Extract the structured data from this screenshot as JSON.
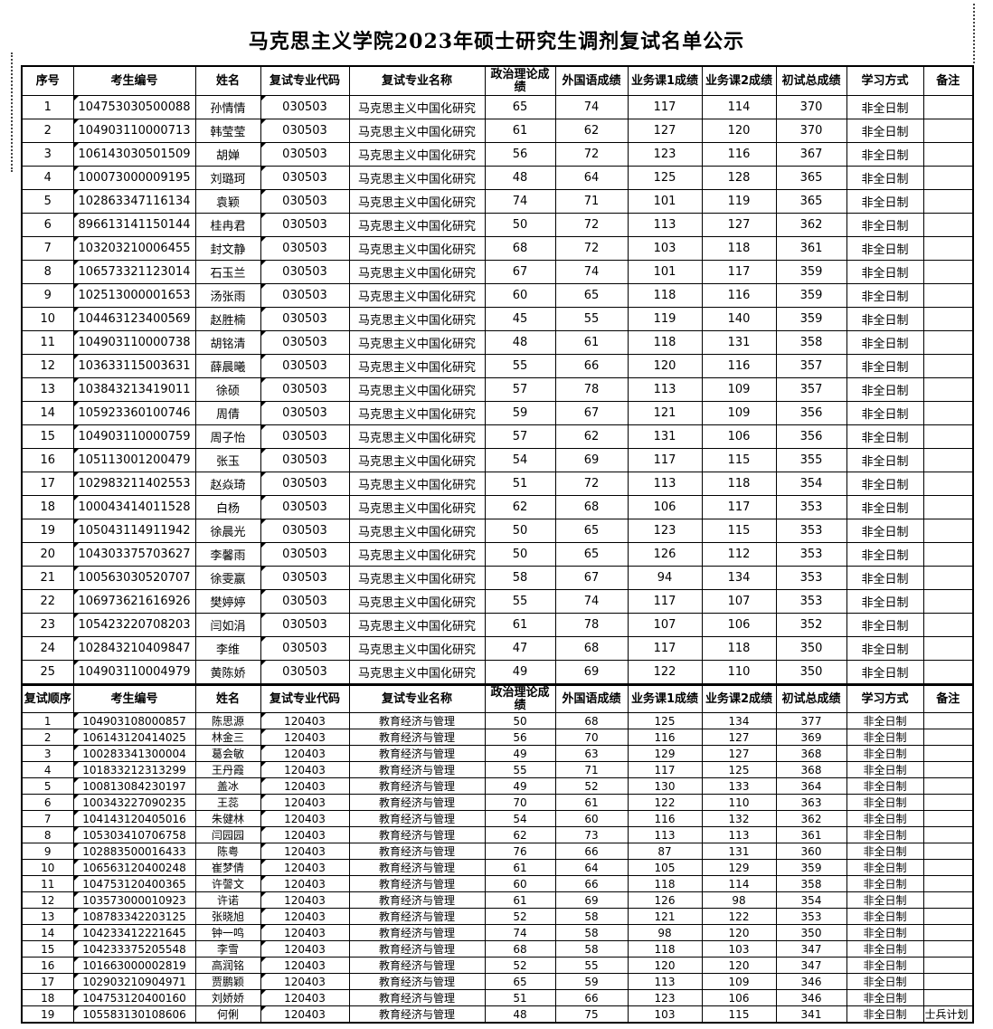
{
  "title": "马克思主义学院2023年硕士研究生调剂复试名单公示",
  "table1": {
    "headers": [
      "序号",
      "考生编号",
      "姓名",
      "复试专业代码",
      "复试专业名称",
      "政治理论成绩",
      "外国语成绩",
      "业务课1成绩",
      "业务课2成绩",
      "初试总成绩",
      "学习方式",
      "备注"
    ],
    "rows": [
      [
        "1",
        "104753030500088",
        "孙情情",
        "030503",
        "马克思主义中国化研究",
        "65",
        "74",
        "117",
        "114",
        "370",
        "非全日制",
        ""
      ],
      [
        "2",
        "104903110000713",
        "韩莹莹",
        "030503",
        "马克思主义中国化研究",
        "61",
        "62",
        "127",
        "120",
        "370",
        "非全日制",
        ""
      ],
      [
        "3",
        "106143030501509",
        "胡婵",
        "030503",
        "马克思主义中国化研究",
        "56",
        "72",
        "123",
        "116",
        "367",
        "非全日制",
        ""
      ],
      [
        "4",
        "100073000009195",
        "刘璐珂",
        "030503",
        "马克思主义中国化研究",
        "48",
        "64",
        "125",
        "128",
        "365",
        "非全日制",
        ""
      ],
      [
        "5",
        "102863347116134",
        "袁颖",
        "030503",
        "马克思主义中国化研究",
        "74",
        "71",
        "101",
        "119",
        "365",
        "非全日制",
        ""
      ],
      [
        "6",
        "896613141150144",
        "桂冉君",
        "030503",
        "马克思主义中国化研究",
        "50",
        "72",
        "113",
        "127",
        "362",
        "非全日制",
        ""
      ],
      [
        "7",
        "103203210006455",
        "封文静",
        "030503",
        "马克思主义中国化研究",
        "68",
        "72",
        "103",
        "118",
        "361",
        "非全日制",
        ""
      ],
      [
        "8",
        "106573321123014",
        "石玉兰",
        "030503",
        "马克思主义中国化研究",
        "67",
        "74",
        "101",
        "117",
        "359",
        "非全日制",
        ""
      ],
      [
        "9",
        "102513000001653",
        "汤张雨",
        "030503",
        "马克思主义中国化研究",
        "60",
        "65",
        "118",
        "116",
        "359",
        "非全日制",
        ""
      ],
      [
        "10",
        "104463123400569",
        "赵胜楠",
        "030503",
        "马克思主义中国化研究",
        "45",
        "55",
        "119",
        "140",
        "359",
        "非全日制",
        ""
      ],
      [
        "11",
        "104903110000738",
        "胡铭清",
        "030503",
        "马克思主义中国化研究",
        "48",
        "61",
        "118",
        "131",
        "358",
        "非全日制",
        ""
      ],
      [
        "12",
        "103633115003631",
        "薛晨曦",
        "030503",
        "马克思主义中国化研究",
        "55",
        "66",
        "120",
        "116",
        "357",
        "非全日制",
        ""
      ],
      [
        "13",
        "103843213419011",
        "徐硕",
        "030503",
        "马克思主义中国化研究",
        "57",
        "78",
        "113",
        "109",
        "357",
        "非全日制",
        ""
      ],
      [
        "14",
        "105923360100746",
        "周倩",
        "030503",
        "马克思主义中国化研究",
        "59",
        "67",
        "121",
        "109",
        "356",
        "非全日制",
        ""
      ],
      [
        "15",
        "104903110000759",
        "周子怡",
        "030503",
        "马克思主义中国化研究",
        "57",
        "62",
        "131",
        "106",
        "356",
        "非全日制",
        ""
      ],
      [
        "16",
        "105113001200479",
        "张玉",
        "030503",
        "马克思主义中国化研究",
        "54",
        "69",
        "117",
        "115",
        "355",
        "非全日制",
        ""
      ],
      [
        "17",
        "102983211402553",
        "赵焱琦",
        "030503",
        "马克思主义中国化研究",
        "51",
        "72",
        "113",
        "118",
        "354",
        "非全日制",
        ""
      ],
      [
        "18",
        "100043414011528",
        "白杨",
        "030503",
        "马克思主义中国化研究",
        "62",
        "68",
        "106",
        "117",
        "353",
        "非全日制",
        ""
      ],
      [
        "19",
        "105043114911942",
        "徐晨光",
        "030503",
        "马克思主义中国化研究",
        "50",
        "65",
        "123",
        "115",
        "353",
        "非全日制",
        ""
      ],
      [
        "20",
        "104303375703627",
        "李馨雨",
        "030503",
        "马克思主义中国化研究",
        "50",
        "65",
        "126",
        "112",
        "353",
        "非全日制",
        ""
      ],
      [
        "21",
        "100563030520707",
        "徐雯嬴",
        "030503",
        "马克思主义中国化研究",
        "58",
        "67",
        "94",
        "134",
        "353",
        "非全日制",
        ""
      ],
      [
        "22",
        "106973621616926",
        "樊婷婷",
        "030503",
        "马克思主义中国化研究",
        "55",
        "74",
        "117",
        "107",
        "353",
        "非全日制",
        ""
      ],
      [
        "23",
        "105423220708203",
        "闫如涓",
        "030503",
        "马克思主义中国化研究",
        "61",
        "78",
        "107",
        "106",
        "352",
        "非全日制",
        ""
      ],
      [
        "24",
        "102843210409847",
        "李维",
        "030503",
        "马克思主义中国化研究",
        "47",
        "68",
        "117",
        "118",
        "350",
        "非全日制",
        ""
      ],
      [
        "25",
        "104903110004979",
        "黄陈娇",
        "030503",
        "马克思主义中国化研究",
        "49",
        "69",
        "122",
        "110",
        "350",
        "非全日制",
        ""
      ]
    ]
  },
  "table2": {
    "headers": [
      "复试顺序",
      "考生编号",
      "姓名",
      "复试专业代码",
      "复试专业名称",
      "政治理论成绩",
      "外国语成绩",
      "业务课1成绩",
      "业务课2成绩",
      "初试总成绩",
      "学习方式",
      "备注"
    ],
    "rows": [
      [
        "1",
        "104903108000857",
        "陈思源",
        "120403",
        "教育经济与管理",
        "50",
        "68",
        "125",
        "134",
        "377",
        "非全日制",
        ""
      ],
      [
        "2",
        "106143120414025",
        "林金三",
        "120403",
        "教育经济与管理",
        "56",
        "70",
        "116",
        "127",
        "369",
        "非全日制",
        ""
      ],
      [
        "3",
        "100283341300004",
        "葛会敏",
        "120403",
        "教育经济与管理",
        "49",
        "63",
        "129",
        "127",
        "368",
        "非全日制",
        ""
      ],
      [
        "4",
        "101833212313299",
        "王丹霞",
        "120403",
        "教育经济与管理",
        "55",
        "71",
        "117",
        "125",
        "368",
        "非全日制",
        ""
      ],
      [
        "5",
        "100813084230197",
        "盖冰",
        "120403",
        "教育经济与管理",
        "49",
        "52",
        "130",
        "133",
        "364",
        "非全日制",
        ""
      ],
      [
        "6",
        "100343227090235",
        "王蕊",
        "120403",
        "教育经济与管理",
        "70",
        "61",
        "122",
        "110",
        "363",
        "非全日制",
        ""
      ],
      [
        "7",
        "104143120405016",
        "朱健林",
        "120403",
        "教育经济与管理",
        "54",
        "60",
        "116",
        "132",
        "362",
        "非全日制",
        ""
      ],
      [
        "8",
        "105303410706758",
        "闫园园",
        "120403",
        "教育经济与管理",
        "62",
        "73",
        "113",
        "113",
        "361",
        "非全日制",
        ""
      ],
      [
        "9",
        "102883500016433",
        "陈粤",
        "120403",
        "教育经济与管理",
        "76",
        "66",
        "87",
        "131",
        "360",
        "非全日制",
        ""
      ],
      [
        "10",
        "106563120400248",
        "崔梦倩",
        "120403",
        "教育经济与管理",
        "61",
        "64",
        "105",
        "129",
        "359",
        "非全日制",
        ""
      ],
      [
        "11",
        "104753120400365",
        "许謦文",
        "120403",
        "教育经济与管理",
        "60",
        "66",
        "118",
        "114",
        "358",
        "非全日制",
        ""
      ],
      [
        "12",
        "103573000010923",
        "许诺",
        "120403",
        "教育经济与管理",
        "61",
        "69",
        "126",
        "98",
        "354",
        "非全日制",
        ""
      ],
      [
        "13",
        "108783342203125",
        "张晓旭",
        "120403",
        "教育经济与管理",
        "52",
        "58",
        "121",
        "122",
        "353",
        "非全日制",
        ""
      ],
      [
        "14",
        "104233412221645",
        "钟一鸣",
        "120403",
        "教育经济与管理",
        "74",
        "58",
        "98",
        "120",
        "350",
        "非全日制",
        ""
      ],
      [
        "15",
        "104233375205548",
        "李雪",
        "120403",
        "教育经济与管理",
        "68",
        "58",
        "118",
        "103",
        "347",
        "非全日制",
        ""
      ],
      [
        "16",
        "101663000002819",
        "高润铭",
        "120403",
        "教育经济与管理",
        "52",
        "55",
        "120",
        "120",
        "347",
        "非全日制",
        ""
      ],
      [
        "17",
        "102903210904971",
        "贾鹏颖",
        "120403",
        "教育经济与管理",
        "65",
        "59",
        "113",
        "109",
        "346",
        "非全日制",
        ""
      ],
      [
        "18",
        "104753120400160",
        "刘娇娇",
        "120403",
        "教育经济与管理",
        "51",
        "66",
        "123",
        "106",
        "346",
        "非全日制",
        ""
      ],
      [
        "19",
        "105583130108606",
        "何俐",
        "120403",
        "教育经济与管理",
        "48",
        "75",
        "103",
        "115",
        "341",
        "非全日制",
        "士兵计划"
      ]
    ]
  }
}
